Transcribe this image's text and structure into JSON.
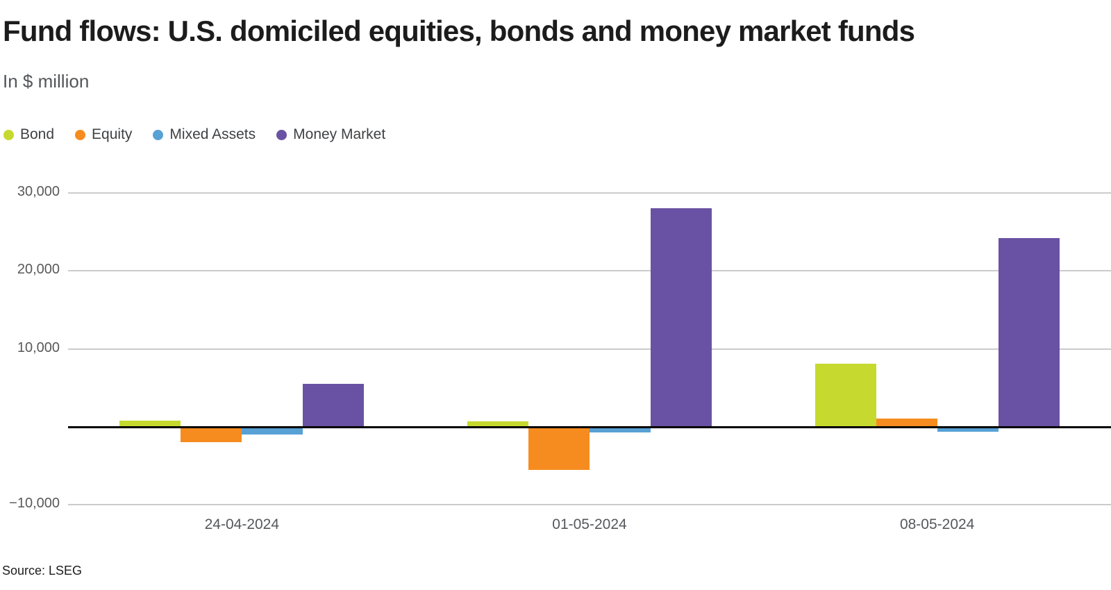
{
  "header": {
    "title": "Fund flows: U.S. domiciled equities, bonds and money market funds",
    "subtitle": "In $ million"
  },
  "legend": [
    {
      "label": "Bond",
      "color": "#c6d92f"
    },
    {
      "label": "Equity",
      "color": "#f68c1f"
    },
    {
      "label": "Mixed Assets",
      "color": "#57a1d5"
    },
    {
      "label": "Money Market",
      "color": "#6952a3"
    }
  ],
  "chart_data": {
    "type": "bar",
    "title": "Fund flows: U.S. domiciled equities, bonds and money market funds",
    "units_label": "In $ million",
    "categories": [
      "24-04-2024",
      "01-05-2024",
      "08-05-2024"
    ],
    "series": [
      {
        "name": "Bond",
        "color": "#c6d92f",
        "values": [
          800,
          700,
          8100
        ]
      },
      {
        "name": "Equity",
        "color": "#f68c1f",
        "values": [
          -2000,
          -5500,
          1100
        ]
      },
      {
        "name": "Mixed Assets",
        "color": "#57a1d5",
        "values": [
          -1000,
          -700,
          -600
        ]
      },
      {
        "name": "Money Market",
        "color": "#6952a3",
        "values": [
          5500,
          28000,
          24200
        ]
      }
    ],
    "ylim": [
      -10000,
      30000
    ],
    "yticks": [
      {
        "value": 30000,
        "label": "30,000"
      },
      {
        "value": 20000,
        "label": "20,000"
      },
      {
        "value": 10000,
        "label": "10,000"
      },
      {
        "value": -10000,
        "label": "−10,000"
      }
    ],
    "grid": true,
    "legend_position": "top-left",
    "colors": {
      "grid": "#cbcbcb",
      "zero_line": "#000000",
      "axis_text": "#58595b"
    }
  },
  "footer": {
    "source": "Source: LSEG"
  }
}
